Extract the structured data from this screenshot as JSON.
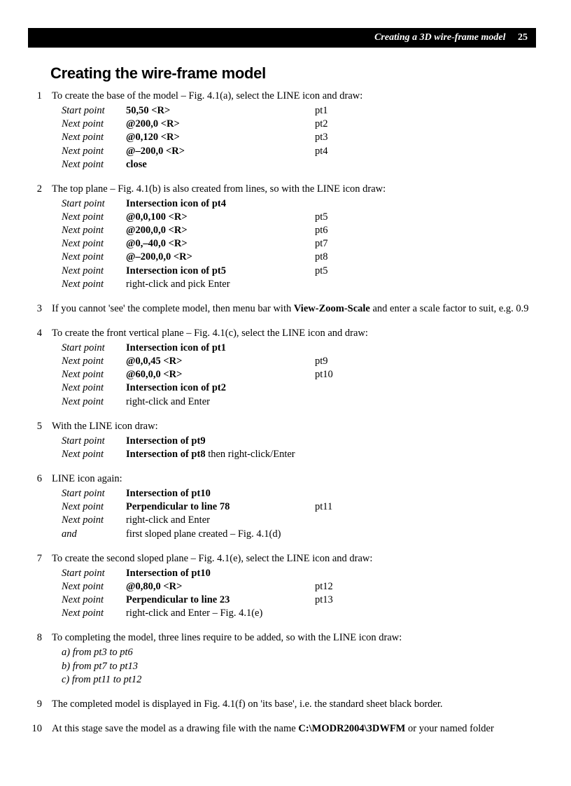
{
  "header": {
    "title": "Creating a 3D wire-frame model",
    "page_number": "25"
  },
  "section_title": "Creating the wire-frame model",
  "steps": [
    {
      "n": "1",
      "intro_pre": "To create the base of the model – Fig. 4.1(a), select the LINE icon and draw:",
      "rows": [
        {
          "label": "Start point",
          "val": "50,50 <R>",
          "ref": "pt1",
          "bold": true
        },
        {
          "label": "Next point",
          "val": "@200,0 <R>",
          "ref": "pt2",
          "bold": true
        },
        {
          "label": "Next point",
          "val": "@0,120 <R>",
          "ref": "pt3",
          "bold": true
        },
        {
          "label": "Next point",
          "val": "@–200,0 <R>",
          "ref": "pt4",
          "bold": true
        },
        {
          "label": "Next point",
          "val": "close",
          "ref": "",
          "bold": true
        }
      ]
    },
    {
      "n": "2",
      "intro_pre": "The top plane – Fig. 4.1(b) is also created from lines, so with the LINE icon draw:",
      "rows": [
        {
          "label": "Start point",
          "val": "Intersection icon of pt4",
          "ref": "",
          "bold": true
        },
        {
          "label": "Next point",
          "val": "@0,0,100 <R>",
          "ref": "pt5",
          "bold": true
        },
        {
          "label": "Next point",
          "val": "@200,0,0 <R>",
          "ref": "pt6",
          "bold": true
        },
        {
          "label": "Next point",
          "val": "@0,–40,0 <R>",
          "ref": "pt7",
          "bold": true
        },
        {
          "label": "Next point",
          "val": "@–200,0,0 <R>",
          "ref": "pt8",
          "bold": true
        },
        {
          "label": "Next point",
          "val": "Intersection icon of pt5",
          "ref": "pt5",
          "bold": true
        },
        {
          "label": "Next point",
          "val": "right-click and pick Enter",
          "ref": "",
          "bold": false
        }
      ]
    },
    {
      "n": "3",
      "intro_html": "If you cannot 'see' the complete model, then menu bar with <b>View-Zoom-Scale</b> and enter a scale factor to suit, e.g. 0.9"
    },
    {
      "n": "4",
      "intro_pre": "To create the front vertical plane – Fig. 4.1(c), select the LINE icon and draw:",
      "rows": [
        {
          "label": "Start point",
          "val": "Intersection icon of pt1",
          "ref": "",
          "bold": true
        },
        {
          "label": "Next point",
          "val": "@0,0,45 <R>",
          "ref": "pt9",
          "bold": true
        },
        {
          "label": "Next point",
          "val": "@60,0,0 <R>",
          "ref": "pt10",
          "bold": true
        },
        {
          "label": "Next point",
          "val": "Intersection icon of pt2",
          "ref": "",
          "bold": true
        },
        {
          "label": "Next point",
          "val": "right-click and Enter",
          "ref": "",
          "bold": false
        }
      ]
    },
    {
      "n": "5",
      "intro_pre": "With the LINE icon draw:",
      "rows": [
        {
          "label": "Start point",
          "val": "Intersection of pt9",
          "ref": "",
          "bold": true
        },
        {
          "label": "Next point",
          "val_html": "<b>Intersection of pt8</b> then right-click/Enter",
          "ref": ""
        }
      ]
    },
    {
      "n": "6",
      "intro_pre": "LINE icon again:",
      "rows": [
        {
          "label": "Start point",
          "val": "Intersection of pt10",
          "ref": "",
          "bold": true
        },
        {
          "label": "Next point",
          "val": "Perpendicular to line 78",
          "ref": "pt11",
          "bold": true
        },
        {
          "label": "Next point",
          "val": "right-click and Enter",
          "ref": "",
          "bold": false
        },
        {
          "label": "and",
          "val": "first sloped plane created – Fig. 4.1(d)",
          "ref": "",
          "bold": false
        }
      ]
    },
    {
      "n": "7",
      "intro_pre": "To create the second sloped plane – Fig. 4.1(e), select the LINE icon and draw:",
      "rows": [
        {
          "label": "Start point",
          "val": "Intersection of pt10",
          "ref": "",
          "bold": true
        },
        {
          "label": "Next point",
          "val": "@0,80,0 <R>",
          "ref": "pt12",
          "bold": true
        },
        {
          "label": "Next point",
          "val": "Perpendicular to line 23",
          "ref": "pt13",
          "bold": true
        },
        {
          "label": "Next point",
          "val": "right-click and Enter – Fig. 4.1(e)",
          "ref": "",
          "bold": false
        }
      ]
    },
    {
      "n": "8",
      "intro_pre_justify": "To completing the model, three lines require to be added, so with the LINE icon draw:",
      "sublines": [
        "a) from pt3 to pt6",
        "b) from pt7 to pt13",
        "c) from pt11 to pt12"
      ]
    },
    {
      "n": "9",
      "intro_pre": "The completed model is displayed in Fig. 4.1(f) on 'its base', i.e. the standard sheet black border."
    },
    {
      "n": "10",
      "intro_html": "At this stage save the model as a drawing file with the name <b>C:\\MODR2004\\3DWFM</b> or your named folder"
    }
  ]
}
